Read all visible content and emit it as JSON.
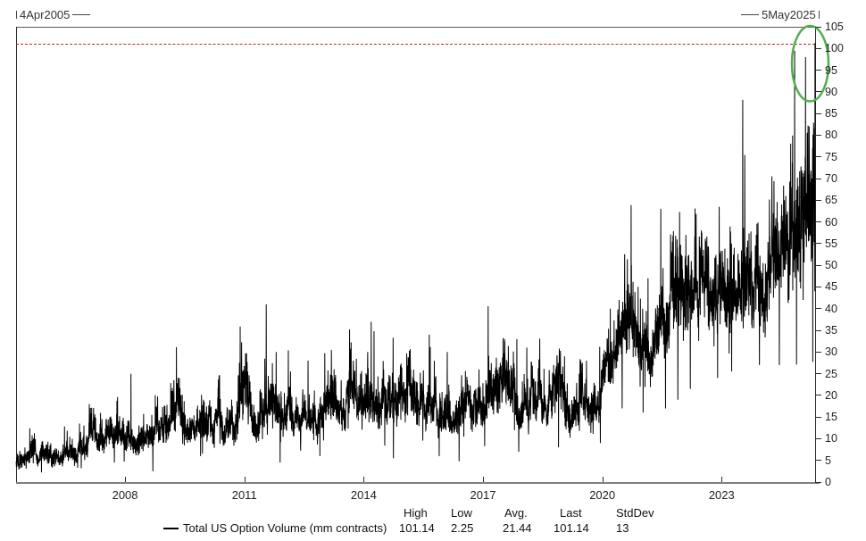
{
  "header": {
    "start_marker_label": "4Apr2005",
    "end_marker_label": "5May2025"
  },
  "legend": {
    "series_label": "Total US Option Volume (mm contracts)",
    "columns": [
      {
        "label": "High",
        "value": "101.14"
      },
      {
        "label": "Low",
        "value": "2.25"
      },
      {
        "label": "Avg.",
        "value": "21.44"
      },
      {
        "label": "Last",
        "value": "101.14"
      },
      {
        "label": "StdDev",
        "value": "13"
      }
    ]
  },
  "chart_data": {
    "type": "line",
    "series_name": "Total US Option Volume (mm contracts)",
    "x_start_label": "4Apr2005",
    "x_end_label": "5May2025",
    "x_start": 2005.26,
    "x_end": 2025.35,
    "x_ticks": [
      "2008",
      "2011",
      "2014",
      "2017",
      "2020",
      "2023"
    ],
    "y_min": 0,
    "y_max": 105,
    "y_tick_step": 5,
    "grid": false,
    "legend_position": "bottom",
    "line_color": "#000000",
    "stats": {
      "high": 101.14,
      "low": 2.25,
      "avg": 21.44,
      "last": 101.14,
      "stddev": 13
    },
    "reference_line": {
      "value": 101.14,
      "style": "dashed",
      "color": "#c8281e"
    },
    "annotation_ellipse": {
      "description": "green ellipse highlighting record final spike",
      "t_center": 2025.23,
      "value_center": 96.5,
      "t_radius": 0.46,
      "value_radius": 8.7,
      "color": "#4fae4f"
    },
    "trend_anchors": [
      [
        2005.26,
        4.8
      ],
      [
        2006.0,
        6.0
      ],
      [
        2007.0,
        8.5
      ],
      [
        2008.0,
        12.0
      ],
      [
        2009.0,
        13.5
      ],
      [
        2010.0,
        14.0
      ],
      [
        2011.0,
        16.0
      ],
      [
        2012.0,
        15.5
      ],
      [
        2013.0,
        15.5
      ],
      [
        2014.0,
        16.5
      ],
      [
        2015.0,
        17.0
      ],
      [
        2016.0,
        16.0
      ],
      [
        2017.0,
        16.0
      ],
      [
        2018.0,
        20.0
      ],
      [
        2019.0,
        19.0
      ],
      [
        2019.85,
        20.0
      ],
      [
        2020.15,
        30.0
      ],
      [
        2021.0,
        38.0
      ],
      [
        2022.0,
        40.0
      ],
      [
        2023.0,
        42.0
      ],
      [
        2024.0,
        46.0
      ],
      [
        2024.8,
        52.0
      ],
      [
        2025.15,
        60.0
      ],
      [
        2025.35,
        68.0
      ]
    ],
    "spikes": [
      [
        2007.1,
        18
      ],
      [
        2008.15,
        25
      ],
      [
        2009.2,
        21
      ],
      [
        2010.35,
        22
      ],
      [
        2011.55,
        41
      ],
      [
        2011.8,
        30
      ],
      [
        2012.6,
        28
      ],
      [
        2014.1,
        30
      ],
      [
        2015.65,
        34
      ],
      [
        2016.1,
        30
      ],
      [
        2016.9,
        26
      ],
      [
        2017.85,
        33
      ],
      [
        2018.1,
        31
      ],
      [
        2019.05,
        29
      ],
      [
        2019.6,
        28
      ],
      [
        2020.2,
        40
      ],
      [
        2020.55,
        38
      ],
      [
        2020.9,
        45
      ],
      [
        2021.15,
        47
      ],
      [
        2022.1,
        57
      ],
      [
        2022.5,
        50
      ],
      [
        2022.85,
        52
      ],
      [
        2023.25,
        55
      ],
      [
        2023.6,
        52
      ],
      [
        2023.9,
        57
      ],
      [
        2024.3,
        62
      ],
      [
        2024.75,
        68
      ],
      [
        2025.0,
        70
      ],
      [
        2025.1,
        75
      ],
      [
        2025.2,
        82
      ],
      [
        2025.347,
        101.14
      ]
    ],
    "dips": [
      [
        2005.9,
        2.25
      ],
      [
        2006.9,
        3.2
      ],
      [
        2008.7,
        2.5
      ],
      [
        2009.9,
        6.0
      ],
      [
        2011.9,
        4.5
      ],
      [
        2012.9,
        6.0
      ],
      [
        2014.75,
        5.5
      ],
      [
        2015.9,
        6.0
      ],
      [
        2016.4,
        4.8
      ],
      [
        2017.9,
        7.0
      ],
      [
        2018.9,
        8.0
      ],
      [
        2019.95,
        9.0
      ],
      [
        2020.5,
        17.0
      ],
      [
        2020.95,
        22.0
      ],
      [
        2021.9,
        19.0
      ],
      [
        2022.9,
        24.0
      ],
      [
        2023.95,
        27.0
      ],
      [
        2024.45,
        27.0
      ],
      [
        2025.05,
        42.0
      ],
      [
        2025.343,
        44.0
      ]
    ],
    "volatility_segments": [
      {
        "until": 2007.0,
        "sigma": 0.2
      },
      {
        "until": 2012.0,
        "sigma": 0.17
      },
      {
        "until": 2019.8,
        "sigma": 0.15
      },
      {
        "until": 2026.0,
        "sigma": 0.115
      }
    ],
    "points_per_year": 252
  }
}
